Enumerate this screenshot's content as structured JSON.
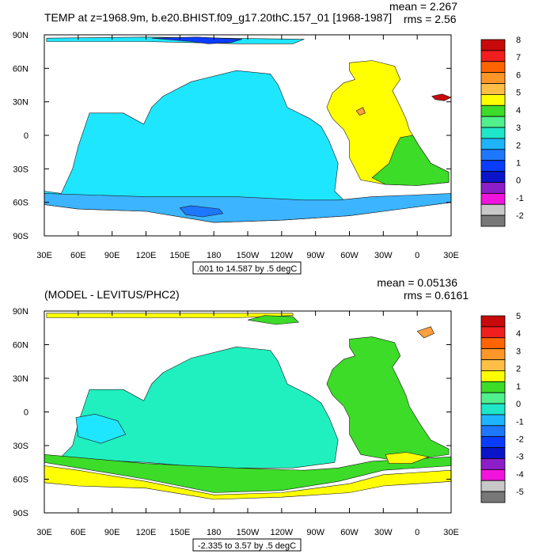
{
  "colors": {
    "land": "#ffffff",
    "frame": "#000000",
    "c_yellow": "#ffff00",
    "c_cyan": "#1ee6ff",
    "c_green": "#3cdc28",
    "c_teal": "#20f0c0",
    "c_ltblue": "#3cb4ff",
    "c_blue": "#0a3cff",
    "c_orange": "#ffa040",
    "c_red": "#c80a0a"
  },
  "chart_data": [
    {
      "type": "heatmap",
      "panel": "top",
      "title": "TEMP at z=1968.9m, b.e20.BHIST.f09_g17.20thC.157_01 [1968-1987]",
      "mean_text": "mean = 2.267",
      "rms_text": "rms = 2.56",
      "mean": 2.267,
      "rms": 2.56,
      "range_label": ".001 to 14.587 by .5 degC",
      "x_ticks": [
        "30E",
        "60E",
        "90E",
        "120E",
        "150E",
        "180",
        "150W",
        "120W",
        "90W",
        "60W",
        "30W",
        "0",
        "30E"
      ],
      "y_ticks": [
        "90N",
        "60N",
        "30N",
        "0",
        "30S",
        "60S",
        "90S"
      ],
      "xlim": [
        30,
        390
      ],
      "ylim": [
        -90,
        90
      ],
      "colorbar": {
        "labels": [
          "8",
          "7",
          "6",
          "5",
          "4",
          "3",
          "2",
          "1",
          "0",
          "-1",
          "-2"
        ],
        "colors": [
          "#c80a0a",
          "#f01e1e",
          "#ff6400",
          "#ff9628",
          "#ffbe46",
          "#ffff00",
          "#3cdc28",
          "#50f08c",
          "#1ee6c8",
          "#1eb4ff",
          "#1e78ff",
          "#0a3cff",
          "#0a14c8",
          "#8c1ec8",
          "#f014dc",
          "#c8c8c8",
          "#787878"
        ]
      },
      "regions": [
        {
          "name": "pacific-indian-ocean",
          "value": 2.5,
          "color": "#1ee6ff",
          "points": [
            [
              45,
              -52
            ],
            [
              55,
              -30
            ],
            [
              60,
              -10
            ],
            [
              70,
              20
            ],
            [
              100,
              20
            ],
            [
              118,
              10
            ],
            [
              125,
              25
            ],
            [
              135,
              35
            ],
            [
              160,
              48
            ],
            [
              200,
              58
            ],
            [
              230,
              55
            ],
            [
              237,
              45
            ],
            [
              245,
              25
            ],
            [
              265,
              15
            ],
            [
              275,
              8
            ],
            [
              282,
              -5
            ],
            [
              290,
              -25
            ],
            [
              287,
              -50
            ],
            [
              295,
              -58
            ],
            [
              300,
              -63
            ],
            [
              330,
              -62
            ],
            [
              360,
              -58
            ],
            [
              390,
              -55
            ],
            [
              390,
              -60
            ],
            [
              330,
              -68
            ],
            [
              300,
              -72
            ],
            [
              240,
              -76
            ],
            [
              180,
              -78
            ],
            [
              120,
              -68
            ],
            [
              60,
              -66
            ],
            [
              30,
              -62
            ],
            [
              30,
              -50
            ]
          ]
        },
        {
          "name": "atlantic-ocean",
          "value": 3.7,
          "color": "#ffff00",
          "points": [
            [
              300,
              65
            ],
            [
              320,
              67
            ],
            [
              340,
              62
            ],
            [
              345,
              50
            ],
            [
              338,
              40
            ],
            [
              343,
              30
            ],
            [
              350,
              15
            ],
            [
              353,
              5
            ],
            [
              356,
              0
            ],
            [
              362,
              -10
            ],
            [
              372,
              -25
            ],
            [
              388,
              -33
            ],
            [
              388,
              -42
            ],
            [
              360,
              -45
            ],
            [
              332,
              -44
            ],
            [
              310,
              -40
            ],
            [
              300,
              -20
            ],
            [
              300,
              -5
            ],
            [
              295,
              5
            ],
            [
              285,
              15
            ],
            [
              280,
              25
            ],
            [
              285,
              38
            ],
            [
              295,
              47
            ],
            [
              305,
              50
            ],
            [
              300,
              58
            ]
          ]
        },
        {
          "name": "south-atlantic-green",
          "value": 3.2,
          "color": "#3cdc28",
          "points": [
            [
              345,
              -2
            ],
            [
              356,
              0
            ],
            [
              362,
              -10
            ],
            [
              372,
              -25
            ],
            [
              388,
              -33
            ],
            [
              388,
              -42
            ],
            [
              360,
              -45
            ],
            [
              332,
              -44
            ],
            [
              320,
              -38
            ],
            [
              335,
              -25
            ],
            [
              340,
              -12
            ]
          ]
        },
        {
          "name": "southern-ocean-band",
          "value": 1.8,
          "color": "#3cb4ff",
          "points": [
            [
              30,
              -52
            ],
            [
              120,
              -55
            ],
            [
              200,
              -55
            ],
            [
              260,
              -58
            ],
            [
              290,
              -58
            ],
            [
              320,
              -55
            ],
            [
              390,
              -52
            ],
            [
              390,
              -60
            ],
            [
              330,
              -68
            ],
            [
              300,
              -72
            ],
            [
              240,
              -76
            ],
            [
              180,
              -78
            ],
            [
              120,
              -68
            ],
            [
              60,
              -66
            ],
            [
              30,
              -62
            ]
          ]
        },
        {
          "name": "arctic-strip",
          "value": 2.0,
          "color": "#1ee6ff",
          "points": [
            [
              32,
              84
            ],
            [
              120,
              84
            ],
            [
              200,
              82
            ],
            [
              250,
              82
            ],
            [
              260,
              86
            ],
            [
              120,
              88
            ],
            [
              32,
              87
            ]
          ]
        },
        {
          "name": "arctic-blue-patch",
          "value": 0.2,
          "color": "#0a3cff",
          "points": [
            [
              125,
              87
            ],
            [
              160,
              84
            ],
            [
              175,
              82
            ],
            [
              195,
              83
            ],
            [
              205,
              86
            ],
            [
              165,
              88
            ]
          ]
        },
        {
          "name": "ross-sea-blue",
          "value": 0.8,
          "color": "#1e78ff",
          "points": [
            [
              150,
              -65
            ],
            [
              160,
              -63
            ],
            [
              185,
              -66
            ],
            [
              188,
              -70
            ],
            [
              170,
              -73
            ],
            [
              155,
              -71
            ]
          ]
        },
        {
          "name": "labrador-orange",
          "value": 5.0,
          "color": "#ffa040",
          "points": [
            [
              306,
              22
            ],
            [
              312,
              25
            ],
            [
              314,
              20
            ],
            [
              309,
              18
            ]
          ]
        },
        {
          "name": "med-red",
          "value": 7.5,
          "color": "#c80a0a",
          "points": [
            [
              373,
              35
            ],
            [
              382,
              37
            ],
            [
              390,
              34
            ],
            [
              384,
              31
            ],
            [
              376,
              32
            ]
          ]
        }
      ]
    },
    {
      "type": "heatmap",
      "panel": "bottom",
      "title": "(MODEL - LEVITUS/PHC2)",
      "mean_text": "mean = 0.05136",
      "rms_text": "rms = 0.6161",
      "mean": 0.05136,
      "rms": 0.6161,
      "range_label": "-2.335 to 3.57 by .5 degC",
      "x_ticks": [
        "30E",
        "60E",
        "90E",
        "120E",
        "150E",
        "180",
        "150W",
        "120W",
        "90W",
        "60W",
        "30W",
        "0",
        "30E"
      ],
      "y_ticks": [
        "90N",
        "60N",
        "30N",
        "0",
        "30S",
        "60S",
        "90S"
      ],
      "xlim": [
        30,
        390
      ],
      "ylim": [
        -90,
        90
      ],
      "colorbar": {
        "labels": [
          "5",
          "4",
          "3",
          "2",
          "1",
          "0",
          "-1",
          "-2",
          "-3",
          "-4",
          "-5"
        ],
        "colors": [
          "#c80a0a",
          "#f01e1e",
          "#ff6400",
          "#ff9628",
          "#ffbe46",
          "#ffff00",
          "#3cdc28",
          "#50f08c",
          "#1ee6c8",
          "#1eb4ff",
          "#1e78ff",
          "#0a3cff",
          "#0a14c8",
          "#8c1ec8",
          "#f014dc",
          "#c8c8c8",
          "#787878"
        ]
      },
      "regions": [
        {
          "name": "pacific-indian-ocean",
          "value": -0.2,
          "color": "#20f0c0",
          "points": [
            [
              45,
              -40
            ],
            [
              55,
              -30
            ],
            [
              60,
              -10
            ],
            [
              70,
              20
            ],
            [
              100,
              20
            ],
            [
              118,
              10
            ],
            [
              125,
              25
            ],
            [
              135,
              35
            ],
            [
              160,
              48
            ],
            [
              200,
              58
            ],
            [
              230,
              55
            ],
            [
              237,
              45
            ],
            [
              245,
              25
            ],
            [
              265,
              15
            ],
            [
              275,
              8
            ],
            [
              282,
              -5
            ],
            [
              290,
              -25
            ],
            [
              287,
              -45
            ],
            [
              250,
              -50
            ],
            [
              180,
              -50
            ],
            [
              120,
              -45
            ],
            [
              60,
              -42
            ]
          ]
        },
        {
          "name": "indian-cyan-patch",
          "value": -0.7,
          "color": "#1ee6ff",
          "points": [
            [
              58,
              -5
            ],
            [
              75,
              -2
            ],
            [
              95,
              -8
            ],
            [
              102,
              -20
            ],
            [
              80,
              -28
            ],
            [
              60,
              -22
            ]
          ]
        },
        {
          "name": "atlantic-ocean",
          "value": 0.5,
          "color": "#3cdc28",
          "points": [
            [
              300,
              65
            ],
            [
              320,
              67
            ],
            [
              340,
              62
            ],
            [
              345,
              50
            ],
            [
              338,
              40
            ],
            [
              343,
              30
            ],
            [
              350,
              15
            ],
            [
              353,
              5
            ],
            [
              356,
              0
            ],
            [
              362,
              -10
            ],
            [
              372,
              -25
            ],
            [
              388,
              -33
            ],
            [
              388,
              -38
            ],
            [
              360,
              -42
            ],
            [
              332,
              -42
            ],
            [
              310,
              -38
            ],
            [
              300,
              -20
            ],
            [
              300,
              -5
            ],
            [
              295,
              5
            ],
            [
              285,
              15
            ],
            [
              280,
              25
            ],
            [
              285,
              38
            ],
            [
              295,
              47
            ],
            [
              305,
              50
            ],
            [
              300,
              58
            ]
          ]
        },
        {
          "name": "southern-ocean-green",
          "value": 0.6,
          "color": "#3cdc28",
          "points": [
            [
              30,
              -38
            ],
            [
              120,
              -46
            ],
            [
              200,
              -50
            ],
            [
              260,
              -52
            ],
            [
              290,
              -50
            ],
            [
              320,
              -44
            ],
            [
              390,
              -40
            ],
            [
              390,
              -48
            ],
            [
              330,
              -52
            ],
            [
              290,
              -62
            ],
            [
              240,
              -70
            ],
            [
              180,
              -72
            ],
            [
              120,
              -60
            ],
            [
              60,
              -50
            ],
            [
              30,
              -45
            ]
          ]
        },
        {
          "name": "southern-ocean-yellow",
          "value": 1.4,
          "color": "#ffff00",
          "points": [
            [
              30,
              -48
            ],
            [
              60,
              -52
            ],
            [
              120,
              -62
            ],
            [
              180,
              -74
            ],
            [
              240,
              -72
            ],
            [
              300,
              -64
            ],
            [
              330,
              -56
            ],
            [
              390,
              -52
            ],
            [
              390,
              -62
            ],
            [
              330,
              -66
            ],
            [
              300,
              -72
            ],
            [
              240,
              -76
            ],
            [
              180,
              -78
            ],
            [
              120,
              -68
            ],
            [
              60,
              -66
            ],
            [
              30,
              -63
            ]
          ]
        },
        {
          "name": "arctic-yellow-strip",
          "value": 1.3,
          "color": "#ffff00",
          "points": [
            [
              32,
              84
            ],
            [
              200,
              84
            ],
            [
              250,
              86
            ],
            [
              250,
              88
            ],
            [
              120,
              88
            ],
            [
              32,
              88
            ]
          ]
        },
        {
          "name": "arctic-green-patch",
          "value": 0.4,
          "color": "#3cdc28",
          "points": [
            [
              210,
              82
            ],
            [
              235,
              78
            ],
            [
              255,
              80
            ],
            [
              250,
              85
            ],
            [
              225,
              86
            ]
          ]
        },
        {
          "name": "norwegian-orange",
          "value": 2.6,
          "color": "#ffa040",
          "points": [
            [
              360,
              72
            ],
            [
              372,
              76
            ],
            [
              375,
              70
            ],
            [
              366,
              66
            ]
          ]
        },
        {
          "name": "south-atlantic-yellow",
          "value": 1.2,
          "color": "#ffff00",
          "points": [
            [
              332,
              -38
            ],
            [
              350,
              -36
            ],
            [
              370,
              -40
            ],
            [
              355,
              -46
            ],
            [
              335,
              -46
            ]
          ]
        }
      ]
    }
  ]
}
